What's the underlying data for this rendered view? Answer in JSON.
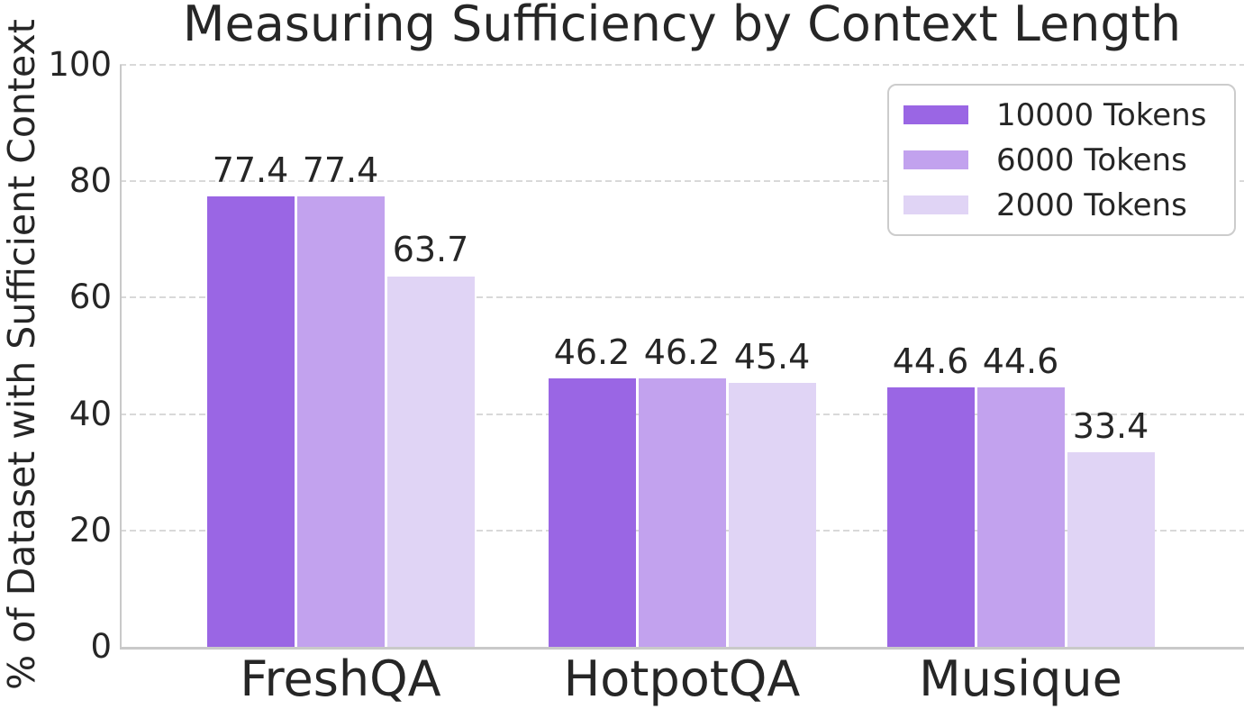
{
  "chart_data": {
    "type": "bar",
    "title": "Measuring Sufficiency by Context Length",
    "xlabel": "",
    "ylabel": "% of Dataset with Sufficient Context",
    "categories": [
      "FreshQA",
      "HotpotQA",
      "Musique"
    ],
    "series": [
      {
        "name": "10000 Tokens",
        "color": "#9a66e4",
        "values": [
          77.4,
          46.2,
          44.6
        ]
      },
      {
        "name": "6000 Tokens",
        "color": "#c2a2ee",
        "values": [
          77.4,
          46.2,
          44.6
        ]
      },
      {
        "name": "2000 Tokens",
        "color": "#e0d4f5",
        "values": [
          63.7,
          45.4,
          33.4
        ]
      }
    ],
    "bar_value_labels": {
      "FreshQA": [
        "77.4",
        "77.4",
        "63.7"
      ],
      "HotpotQA": [
        "46.2",
        "46.2",
        "45.4"
      ],
      "Musique": [
        "44.6",
        "44.6",
        "33.4"
      ]
    },
    "ylim": [
      0,
      100
    ],
    "yticks": [
      0,
      20,
      40,
      60,
      80,
      100
    ],
    "grid": "horizontal-dashed",
    "legend_position": "upper-right",
    "legend_entries": [
      "10000 Tokens",
      "6000 Tokens",
      "2000 Tokens"
    ]
  },
  "colors": {
    "text": "#262626",
    "grid": "#d9d9d9",
    "spine": "#c9c9c9",
    "background": "#ffffff",
    "legend_border": "#cccccc",
    "bar_edge": "#ffffff"
  }
}
